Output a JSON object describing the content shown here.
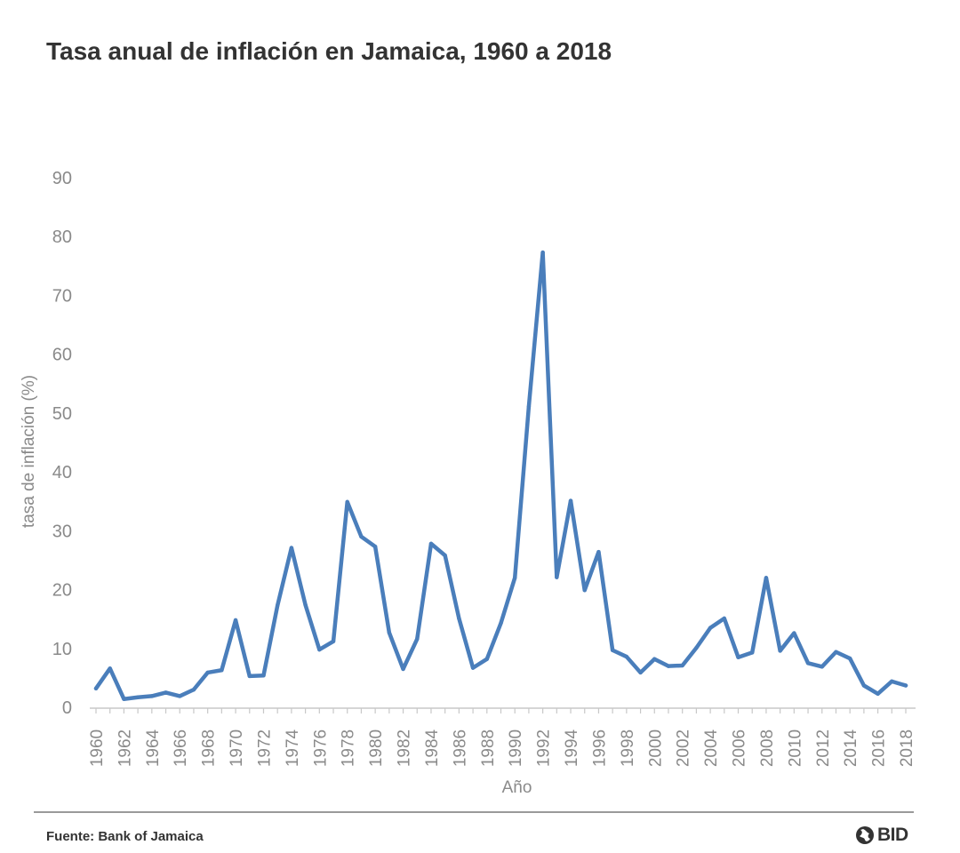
{
  "title": "Tasa anual de inflación en Jamaica, 1960 a 2018",
  "source": "Fuente: Bank of Jamaica",
  "logo_text": "BID",
  "chart_data": {
    "type": "line",
    "xlabel": "Año",
    "ylabel": "tasa de inflación (%)",
    "ylim": [
      0,
      90
    ],
    "yticks": [
      0,
      10,
      20,
      30,
      40,
      50,
      60,
      70,
      80,
      90
    ],
    "xticks": [
      1960,
      1962,
      1964,
      1966,
      1968,
      1970,
      1972,
      1974,
      1976,
      1978,
      1980,
      1982,
      1984,
      1986,
      1988,
      1990,
      1992,
      1994,
      1996,
      1998,
      2000,
      2002,
      2004,
      2006,
      2008,
      2010,
      2012,
      2014,
      2016,
      2018
    ],
    "grid": false,
    "series": [
      {
        "color": "#4a7ebb",
        "x": [
          1960,
          1961,
          1962,
          1963,
          1964,
          1965,
          1966,
          1967,
          1968,
          1969,
          1970,
          1971,
          1972,
          1973,
          1974,
          1975,
          1976,
          1977,
          1978,
          1979,
          1980,
          1981,
          1982,
          1983,
          1984,
          1985,
          1986,
          1987,
          1988,
          1989,
          1990,
          1991,
          1992,
          1993,
          1994,
          1995,
          1996,
          1997,
          1998,
          1999,
          2000,
          2001,
          2002,
          2003,
          2004,
          2005,
          2006,
          2007,
          2008,
          2009,
          2010,
          2011,
          2012,
          2013,
          2014,
          2015,
          2016,
          2017,
          2018
        ],
        "y": [
          3.2,
          6.6,
          1.4,
          1.7,
          1.9,
          2.5,
          1.9,
          3.0,
          5.9,
          6.3,
          14.8,
          5.3,
          5.4,
          17.3,
          27.1,
          17.4,
          9.8,
          11.2,
          34.9,
          29.0,
          27.3,
          12.7,
          6.5,
          11.6,
          27.8,
          25.8,
          15.1,
          6.7,
          8.2,
          14.3,
          22.0,
          51.1,
          77.3,
          22.1,
          35.1,
          19.9,
          26.4,
          9.7,
          8.6,
          5.9,
          8.2,
          7.0,
          7.1,
          10.1,
          13.5,
          15.1,
          8.5,
          9.3,
          22.0,
          9.6,
          12.6,
          7.5,
          6.9,
          9.4,
          8.3,
          3.7,
          2.3,
          4.4,
          3.7
        ]
      }
    ]
  }
}
